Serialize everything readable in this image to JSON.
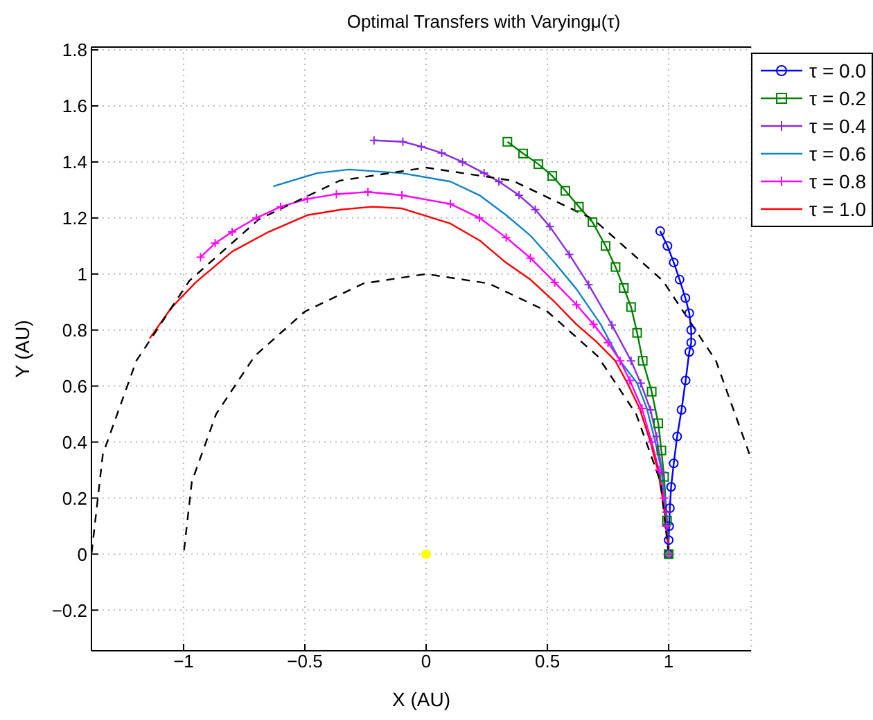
{
  "chart_data": {
    "type": "line",
    "title": "Optimal Transfers with Varyingμ(τ)",
    "xlabel": "X (AU)",
    "ylabel": "Y (AU)",
    "xlim": [
      -1.38,
      1.34
    ],
    "ylim": [
      -0.345,
      1.81
    ],
    "xticks": [
      -1,
      -0.5,
      0,
      0.5,
      1
    ],
    "yticks": [
      -0.2,
      0,
      0.2,
      0.4,
      0.6,
      0.8,
      1,
      1.2,
      1.4,
      1.6,
      1.8
    ],
    "grid": true,
    "legend": "top right",
    "line_style": "solid",
    "series": [
      {
        "name": "τ = 0.0",
        "color": "#0000ff",
        "marker": "circle",
        "x": [
          1,
          1,
          1.002,
          1.005,
          1.01,
          1.021,
          1.035,
          1.053,
          1.07,
          1.085,
          1.093,
          1.093,
          1.085,
          1.069,
          1.045,
          1.021,
          0.995,
          0.965
        ],
        "values": [
          0,
          0.05,
          0.1,
          0.164,
          0.24,
          0.324,
          0.42,
          0.515,
          0.62,
          0.722,
          0.755,
          0.8,
          0.86,
          0.914,
          0.98,
          1.041,
          1.1,
          1.153
        ]
      },
      {
        "name": "τ = 0.2",
        "color": "#008000",
        "marker": "square",
        "x": [
          1,
          0.993,
          0.981,
          0.97,
          0.957,
          0.93,
          0.893,
          0.87,
          0.845,
          0.815,
          0.781,
          0.74,
          0.686,
          0.63,
          0.574,
          0.52,
          0.463,
          0.4,
          0.335
        ],
        "values": [
          0,
          0.12,
          0.276,
          0.37,
          0.467,
          0.58,
          0.69,
          0.79,
          0.882,
          0.95,
          1.025,
          1.1,
          1.185,
          1.24,
          1.297,
          1.35,
          1.392,
          1.43,
          1.472
        ]
      },
      {
        "name": "τ = 0.4",
        "color": "#8a2be2",
        "marker": "cross",
        "x": [
          1,
          0.99,
          0.973,
          0.95,
          0.925,
          0.885,
          0.845,
          0.766,
          0.67,
          0.59,
          0.51,
          0.45,
          0.383,
          0.3,
          0.239,
          0.15,
          0.064,
          -0.02,
          -0.096,
          -0.215
        ],
        "values": [
          0,
          0.15,
          0.292,
          0.42,
          0.515,
          0.61,
          0.69,
          0.818,
          0.962,
          1.07,
          1.169,
          1.23,
          1.281,
          1.33,
          1.36,
          1.4,
          1.432,
          1.455,
          1.472,
          1.477
        ]
      },
      {
        "name": "τ = 0.6",
        "color": "#0e84c8",
        "marker": "none",
        "x": [
          1,
          0.995,
          0.985,
          0.97,
          0.945,
          0.91,
          0.87,
          0.8,
          0.72,
          0.62,
          0.53,
          0.43,
          0.33,
          0.22,
          0.1,
          -0.1,
          -0.32,
          -0.45,
          -0.63
        ],
        "values": [
          0,
          0.1,
          0.2,
          0.3,
          0.4,
          0.52,
          0.61,
          0.69,
          0.82,
          0.946,
          1.04,
          1.137,
          1.21,
          1.281,
          1.33,
          1.36,
          1.373,
          1.36,
          1.313
        ]
      },
      {
        "name": "τ = 0.8",
        "color": "#ff00ff",
        "marker": "cross",
        "x": [
          1,
          0.99,
          0.98,
          0.96,
          0.93,
          0.89,
          0.84,
          0.8,
          0.75,
          0.69,
          0.62,
          0.53,
          0.43,
          0.33,
          0.22,
          0.1,
          -0.1,
          -0.24,
          -0.37,
          -0.49,
          -0.6,
          -0.7,
          -0.8,
          -0.87,
          -0.93
        ],
        "values": [
          0,
          0.1,
          0.2,
          0.3,
          0.4,
          0.52,
          0.62,
          0.69,
          0.755,
          0.82,
          0.89,
          0.97,
          1.057,
          1.13,
          1.2,
          1.25,
          1.281,
          1.293,
          1.285,
          1.268,
          1.24,
          1.2,
          1.15,
          1.11,
          1.06
        ]
      },
      {
        "name": "τ = 1.0",
        "color": "#ff0000",
        "marker": "none",
        "x": [
          1,
          0.99,
          0.975,
          0.955,
          0.925,
          0.88,
          0.83,
          0.78,
          0.7,
          0.62,
          0.53,
          0.43,
          0.33,
          0.22,
          0.1,
          -0.1,
          -0.22,
          -0.35,
          -0.49,
          -0.65,
          -0.8,
          -0.95,
          -1.05,
          -1.14
        ],
        "values": [
          0,
          0.1,
          0.2,
          0.3,
          0.4,
          0.52,
          0.61,
          0.69,
          0.76,
          0.82,
          0.9,
          0.98,
          1.04,
          1.12,
          1.18,
          1.234,
          1.24,
          1.23,
          1.21,
          1.15,
          1.08,
          0.97,
          0.88,
          0.77
        ]
      },
      {
        "color": "#000000",
        "marker": "none",
        "line_style": "dashed",
        "x": [
          1,
          0.966,
          0.866,
          0.707,
          0.5,
          0.259,
          0,
          -0.259,
          -0.5,
          -0.707,
          -0.866,
          -0.966,
          -1
        ],
        "values": [
          0,
          0.259,
          0.5,
          0.707,
          0.866,
          0.966,
          1,
          0.966,
          0.866,
          0.707,
          0.5,
          0.259,
          0
        ]
      },
      {
        "color": "#000000",
        "marker": "none",
        "line_style": "dashed",
        "x": [
          1.333,
          1.195,
          0.976,
          0.69,
          0.357,
          0,
          -0.357,
          -0.69,
          -0.976,
          -1.195,
          -1.333,
          -1.38
        ],
        "values": [
          0.357,
          0.69,
          0.976,
          1.195,
          1.333,
          1.38,
          1.333,
          1.195,
          0.976,
          0.69,
          0.357,
          0
        ]
      },
      {
        "type": "scatter",
        "color": "#ffff00",
        "marker": "circle",
        "x": [
          0
        ],
        "values": [
          0
        ]
      },
      {
        "type": "scatter",
        "color": "#00dd00",
        "marker": "circle",
        "x": [
          1
        ],
        "values": [
          0
        ]
      }
    ]
  }
}
